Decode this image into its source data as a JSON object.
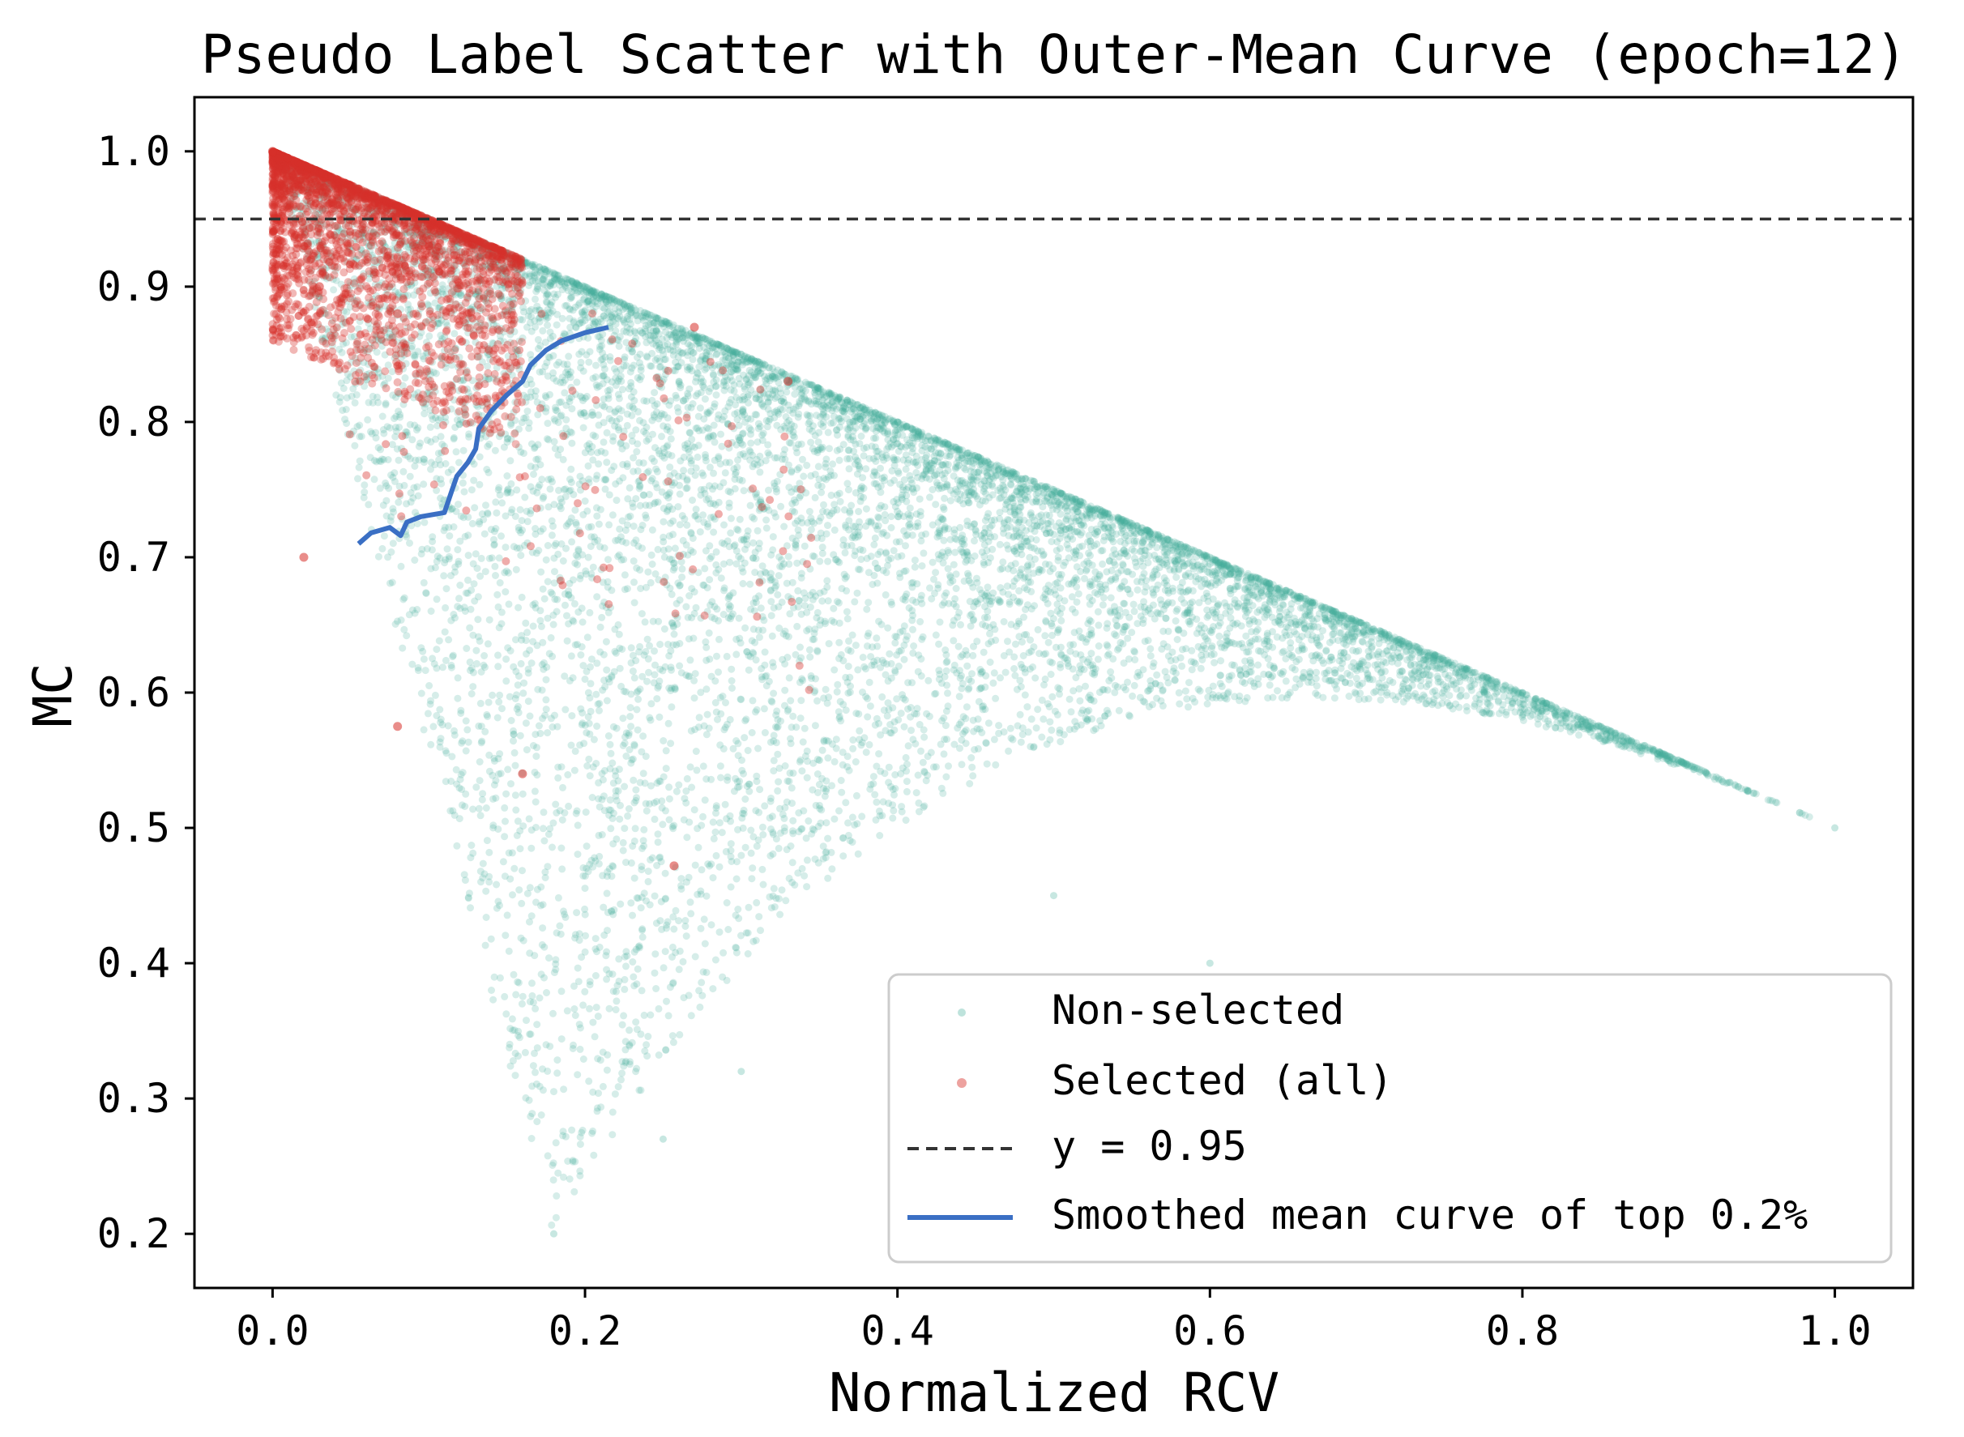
{
  "chart_data": {
    "type": "scatter",
    "title": "Pseudo Label Scatter with Outer-Mean Curve (epoch=12)",
    "xlabel": "Normalized RCV",
    "ylabel": "MC",
    "xlim": [
      -0.05,
      1.05
    ],
    "ylim": [
      0.16,
      1.04
    ],
    "xticks": [
      0.0,
      0.2,
      0.4,
      0.6,
      0.8,
      1.0
    ],
    "xtick_labels": [
      "0.0",
      "0.2",
      "0.4",
      "0.6",
      "0.8",
      "1.0"
    ],
    "yticks": [
      0.2,
      0.3,
      0.4,
      0.5,
      0.6,
      0.7,
      0.8,
      0.9,
      1.0
    ],
    "ytick_labels": [
      "0.2",
      "0.3",
      "0.4",
      "0.5",
      "0.6",
      "0.7",
      "0.8",
      "0.9",
      "1.0"
    ],
    "grid": false,
    "legend_position": "bottom-right",
    "series": [
      {
        "name": "Non-selected",
        "kind": "scatter",
        "color": "#45ae9c",
        "description_bounds": "dense points filling triangle with vertices (0,1.0), (1.0,0.5), (0.2,0.2); densest along upper edge y = 1 - 0.5x",
        "sample_points": [
          [
            0.0,
            1.0
          ],
          [
            0.1,
            0.95
          ],
          [
            0.2,
            0.9
          ],
          [
            0.3,
            0.85
          ],
          [
            0.4,
            0.8
          ],
          [
            0.5,
            0.75
          ],
          [
            0.6,
            0.7
          ],
          [
            0.7,
            0.65
          ],
          [
            0.8,
            0.6
          ],
          [
            0.9,
            0.55
          ],
          [
            1.0,
            0.5
          ],
          [
            0.35,
            0.55
          ],
          [
            0.5,
            0.45
          ],
          [
            0.6,
            0.4
          ],
          [
            0.3,
            0.32
          ],
          [
            0.18,
            0.2
          ],
          [
            0.25,
            0.27
          ]
        ]
      },
      {
        "name": "Selected (all)",
        "kind": "scatter",
        "color": "#d7302a",
        "description_bounds": "dense cluster near top-left corner (x 0 to 0.15, y 0.85 to 1.0) with sparse outliers",
        "sample_points": [
          [
            0.0,
            1.0
          ],
          [
            0.05,
            0.97
          ],
          [
            0.1,
            0.93
          ],
          [
            0.03,
            0.9
          ],
          [
            0.08,
            0.88
          ],
          [
            0.02,
            0.7
          ],
          [
            0.08,
            0.575
          ],
          [
            0.16,
            0.54
          ],
          [
            0.257,
            0.472
          ],
          [
            0.27,
            0.87
          ],
          [
            0.33,
            0.83
          ]
        ]
      },
      {
        "name": "y = 0.95",
        "kind": "hline",
        "y": 0.95,
        "color": "#333333",
        "style": "dashed"
      },
      {
        "name": "Smoothed mean curve of top 0.2%",
        "kind": "line",
        "color": "#3a6fc4",
        "x": [
          0.055,
          0.063,
          0.075,
          0.082,
          0.086,
          0.095,
          0.11,
          0.115,
          0.118,
          0.125,
          0.13,
          0.132,
          0.14,
          0.15,
          0.16,
          0.165,
          0.175,
          0.185,
          0.2,
          0.215
        ],
        "y": [
          0.71,
          0.718,
          0.722,
          0.716,
          0.726,
          0.73,
          0.733,
          0.75,
          0.76,
          0.77,
          0.78,
          0.795,
          0.808,
          0.82,
          0.83,
          0.842,
          0.853,
          0.86,
          0.866,
          0.87
        ]
      }
    ],
    "legend": {
      "entries": [
        "Non-selected",
        "Selected (all)",
        "y = 0.95",
        "Smoothed mean curve of top 0.2%"
      ]
    }
  }
}
